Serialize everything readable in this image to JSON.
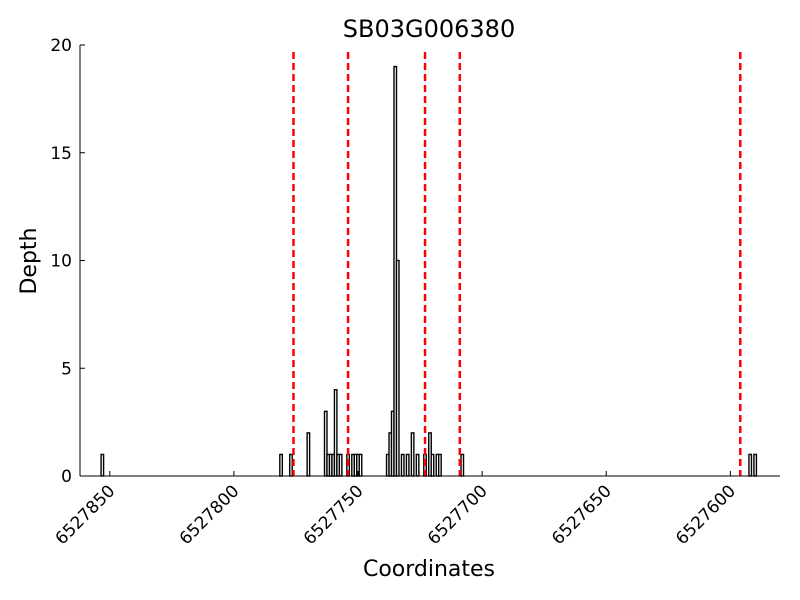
{
  "chart_data": {
    "type": "bar",
    "title": "SB03G006380",
    "xlabel": "Coordinates",
    "ylabel": "Depth",
    "x_reversed": true,
    "xlim": [
      6527862,
      6527580
    ],
    "ylim": [
      0,
      20
    ],
    "xticks": [
      6527850,
      6527800,
      6527750,
      6527700,
      6527650,
      6527600
    ],
    "yticks": [
      0,
      5,
      10,
      15,
      20
    ],
    "bar_color": "#000000",
    "marker_line_color": "#ff0000",
    "marker_lines": [
      6527776,
      6527754,
      6527723,
      6527709,
      6527596
    ],
    "bars": [
      {
        "x": 6527853,
        "value": 1
      },
      {
        "x": 6527781,
        "value": 1
      },
      {
        "x": 6527777,
        "value": 1
      },
      {
        "x": 6527770,
        "value": 2
      },
      {
        "x": 6527763,
        "value": 3
      },
      {
        "x": 6527762,
        "value": 1
      },
      {
        "x": 6527761,
        "value": 1
      },
      {
        "x": 6527760,
        "value": 1
      },
      {
        "x": 6527759,
        "value": 4
      },
      {
        "x": 6527758,
        "value": 1
      },
      {
        "x": 6527757,
        "value": 1
      },
      {
        "x": 6527754,
        "value": 1
      },
      {
        "x": 6527752,
        "value": 1
      },
      {
        "x": 6527751,
        "value": 1
      },
      {
        "x": 6527750,
        "value": 1
      },
      {
        "x": 6527749,
        "value": 1
      },
      {
        "x": 6527738,
        "value": 1
      },
      {
        "x": 6527737,
        "value": 2
      },
      {
        "x": 6527736,
        "value": 3
      },
      {
        "x": 6527735,
        "value": 19
      },
      {
        "x": 6527734,
        "value": 10
      },
      {
        "x": 6527732,
        "value": 1
      },
      {
        "x": 6527730,
        "value": 1
      },
      {
        "x": 6527728,
        "value": 2
      },
      {
        "x": 6527726,
        "value": 1
      },
      {
        "x": 6527723,
        "value": 1
      },
      {
        "x": 6527721,
        "value": 2
      },
      {
        "x": 6527720,
        "value": 1
      },
      {
        "x": 6527718,
        "value": 1
      },
      {
        "x": 6527717,
        "value": 1
      },
      {
        "x": 6527708,
        "value": 1
      },
      {
        "x": 6527592,
        "value": 1
      },
      {
        "x": 6527590,
        "value": 1
      }
    ]
  }
}
